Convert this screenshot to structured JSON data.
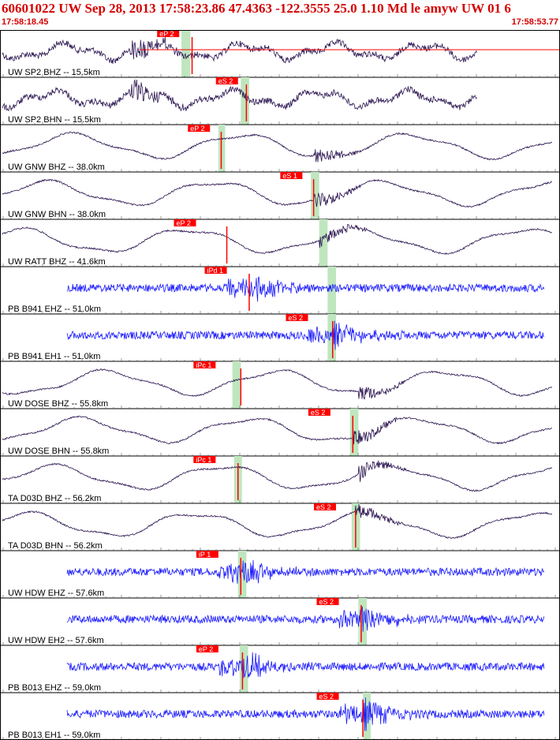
{
  "header": {
    "title": "60601022 UW Sep 28, 2013 17:58:23.86   47.4363 -122.3555 25.0 1.10 Md le amyw UW 01   6",
    "start_time": "17:58:18.45",
    "end_time": "17:58:53.77"
  },
  "colors": {
    "header_text": "#d40000",
    "pick": "#ff0000",
    "window": "#bfe6bf",
    "trace_uw": "#2a1450",
    "trace_pb": "#1a1aff",
    "grid": "#555555"
  },
  "channels": [
    {
      "label": "UW SP2 BHZ -- 15.5km",
      "color": "trace_uw",
      "type": "bb",
      "pick": {
        "label": "eP 2",
        "t": 0.32
      },
      "window": [
        0.324,
        0.34
      ],
      "onset": 0.47,
      "red_line": true,
      "theo": 0.343
    },
    {
      "label": "UW SP2 BHN -- 15.5km",
      "color": "trace_uw",
      "type": "bb",
      "pick": {
        "label": "eS 2",
        "t": 0.425
      },
      "window": [
        0.43,
        0.445
      ],
      "onset": 0.47,
      "theo": 0.44
    },
    {
      "label": "UW GNW BHZ -- 38.0km",
      "color": "trace_uw",
      "type": "lp",
      "pick": {
        "label": "eP 2",
        "t": 0.375
      },
      "window": [
        0.39,
        0.402
      ],
      "onset": 0.56,
      "theo": 0.395
    },
    {
      "label": "UW GNW BHN -- 38.0km",
      "color": "trace_uw",
      "type": "lp",
      "pick": {
        "label": "eS 1",
        "t": 0.54
      },
      "window": [
        0.555,
        0.57
      ],
      "onset": 0.56,
      "theo": 0.56
    },
    {
      "label": "UW RATT BHZ -- 41.6km",
      "color": "trace_uw",
      "type": "lp",
      "pick": {
        "label": "eP 2",
        "t": 0.35
      },
      "window": [
        0.57,
        0.585
      ],
      "onset": 0.57,
      "theo": 0.405
    },
    {
      "label": "PB B941 EHZ -- 51.0km",
      "color": "trace_pb",
      "type": "hf",
      "pick": {
        "label": "iPd 1",
        "t": 0.405
      },
      "window": [
        0.585,
        0.6
      ],
      "onset": 0.445,
      "theo": 0.445
    },
    {
      "label": "PB B941 EH1 -- 51.0km",
      "color": "trace_pb",
      "type": "hf",
      "pick": {
        "label": "eS 2",
        "t": 0.55
      },
      "window": [
        0.585,
        0.6
      ],
      "onset": 0.595,
      "theo": 0.594
    },
    {
      "label": "UW DOSE BHZ -- 55.8km",
      "color": "trace_uw",
      "type": "lp",
      "pick": {
        "label": "iPc 1",
        "t": 0.385
      },
      "window": [
        0.415,
        0.43
      ],
      "onset": 0.64,
      "theo": 0.43
    },
    {
      "label": "UW DOSE BHN -- 55.8km",
      "color": "trace_uw",
      "type": "lp",
      "pick": {
        "label": "eS 2",
        "t": 0.59
      },
      "window": [
        0.625,
        0.64
      ],
      "onset": 0.63,
      "theo": 0.63
    },
    {
      "label": "TA D03D BHZ -- 56.2km",
      "color": "trace_uw",
      "type": "lp",
      "pick": {
        "label": "iPc 1",
        "t": 0.385
      },
      "window": [
        0.418,
        0.432
      ],
      "onset": 0.64,
      "theo": 0.425
    },
    {
      "label": "TA D03D BHN -- 56.2km",
      "color": "trace_uw",
      "type": "lp",
      "pick": {
        "label": "eS 2",
        "t": 0.6
      },
      "window": [
        0.628,
        0.643
      ],
      "onset": 0.635,
      "theo": 0.635
    },
    {
      "label": "UW HDW EHZ -- 57.6km",
      "color": "trace_pb",
      "type": "hf",
      "pick": {
        "label": "iP 1",
        "t": 0.39
      },
      "window": [
        0.425,
        0.44
      ],
      "onset": 0.43,
      "theo": 0.43
    },
    {
      "label": "UW HDW EH2 -- 57.6km",
      "color": "trace_pb",
      "type": "hf",
      "pick": {
        "label": "eS 2",
        "t": 0.605
      },
      "window": [
        0.64,
        0.655
      ],
      "onset": 0.645,
      "theo": 0.645
    },
    {
      "label": "PB B013 EHZ -- 59.0km",
      "color": "trace_pb",
      "type": "hf",
      "pick": {
        "label": "eP 2",
        "t": 0.39
      },
      "window": [
        0.428,
        0.443
      ],
      "onset": 0.433,
      "theo": 0.433
    },
    {
      "label": "PB B013 EH1 -- 59.0km",
      "color": "trace_pb",
      "type": "hf",
      "pick": {
        "label": "eS 2",
        "t": 0.605
      },
      "window": [
        0.648,
        0.662
      ],
      "onset": 0.648,
      "theo": 0.648
    }
  ]
}
